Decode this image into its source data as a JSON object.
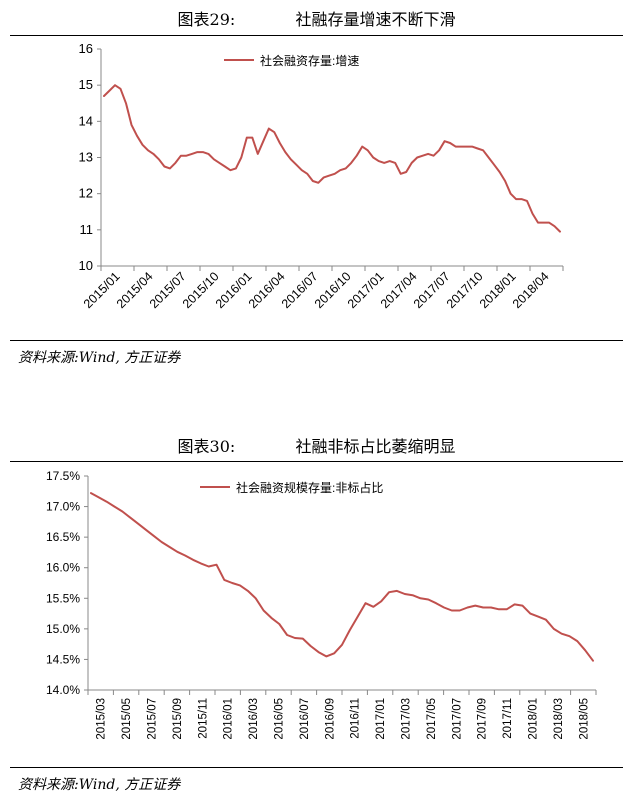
{
  "charts": [
    {
      "figure_number": "图表29:",
      "figure_title": "社融存量增速不断下滑",
      "source": "资料来源:Wind, 方正证券"
    },
    {
      "figure_number": "图表30:",
      "figure_title": "社融非标占比萎缩明显",
      "source": "资料来源:Wind, 方正证券"
    }
  ],
  "chart_data": [
    {
      "type": "line",
      "title": "社融存量增速不断下滑",
      "series": [
        {
          "name": "社会融资存量:增速",
          "color": "#c0504d",
          "values": [
            14.7,
            14.85,
            15.0,
            14.9,
            14.5,
            13.9,
            13.6,
            13.35,
            13.2,
            13.1,
            12.95,
            12.75,
            12.7,
            12.85,
            13.05,
            13.05,
            13.1,
            13.15,
            13.15,
            13.1,
            12.95,
            12.85,
            12.75,
            12.65,
            12.7,
            13.0,
            13.55,
            13.55,
            13.1,
            13.45,
            13.8,
            13.7,
            13.4,
            13.15,
            12.95,
            12.8,
            12.65,
            12.55,
            12.35,
            12.3,
            12.45,
            12.5,
            12.55,
            12.65,
            12.7,
            12.85,
            13.05,
            13.3,
            13.2,
            13.0,
            12.9,
            12.85,
            12.9,
            12.85,
            12.55,
            12.6,
            12.85,
            13.0,
            13.05,
            13.1,
            13.05,
            13.2,
            13.45,
            13.4,
            13.3,
            13.3,
            13.3,
            13.3,
            13.25,
            13.2,
            13.0,
            12.8,
            12.6,
            12.35,
            12.0,
            11.85,
            11.85,
            11.8,
            11.45,
            11.2,
            11.2,
            11.2,
            11.1,
            10.95
          ]
        }
      ],
      "x_ticks": [
        "2015/01",
        "2015/04",
        "2015/07",
        "2015/10",
        "2016/01",
        "2016/04",
        "2016/07",
        "2016/10",
        "2017/01",
        "2017/04",
        "2017/07",
        "2017/10",
        "2018/01",
        "2018/04"
      ],
      "ylim": [
        10,
        16
      ],
      "yticks": [
        "10",
        "11",
        "12",
        "13",
        "14",
        "15",
        "16"
      ],
      "legend_position": "top-center"
    },
    {
      "type": "line",
      "title": "社融非标占比萎缩明显",
      "series": [
        {
          "name": "社会融资规模存量:非标占比",
          "color": "#c0504d",
          "values": [
            17.22,
            17.15,
            17.08,
            17.0,
            16.92,
            16.82,
            16.72,
            16.62,
            16.52,
            16.42,
            16.34,
            16.26,
            16.2,
            16.13,
            16.07,
            16.02,
            16.05,
            15.8,
            15.75,
            15.71,
            15.62,
            15.5,
            15.3,
            15.18,
            15.08,
            14.9,
            14.85,
            14.84,
            14.72,
            14.62,
            14.55,
            14.6,
            14.74,
            14.98,
            15.2,
            15.42,
            15.36,
            15.45,
            15.6,
            15.62,
            15.57,
            15.55,
            15.5,
            15.48,
            15.42,
            15.35,
            15.3,
            15.3,
            15.35,
            15.38,
            15.35,
            15.35,
            15.32,
            15.32,
            15.4,
            15.38,
            15.25,
            15.2,
            15.15,
            15.0,
            14.92,
            14.88,
            14.8,
            14.65,
            14.48
          ]
        }
      ],
      "x_ticks": [
        "2015/03",
        "2015/05",
        "2015/07",
        "2015/09",
        "2015/11",
        "2016/01",
        "2016/03",
        "2016/05",
        "2016/07",
        "2016/09",
        "2016/11",
        "2017/01",
        "2017/03",
        "2017/05",
        "2017/07",
        "2017/09",
        "2017/11",
        "2018/01",
        "2018/03",
        "2018/05"
      ],
      "ylim": [
        14.0,
        17.5
      ],
      "yticks": [
        "14.0%",
        "14.5%",
        "15.0%",
        "15.5%",
        "16.0%",
        "16.5%",
        "17.0%",
        "17.5%"
      ],
      "legend_position": "top-center"
    }
  ]
}
